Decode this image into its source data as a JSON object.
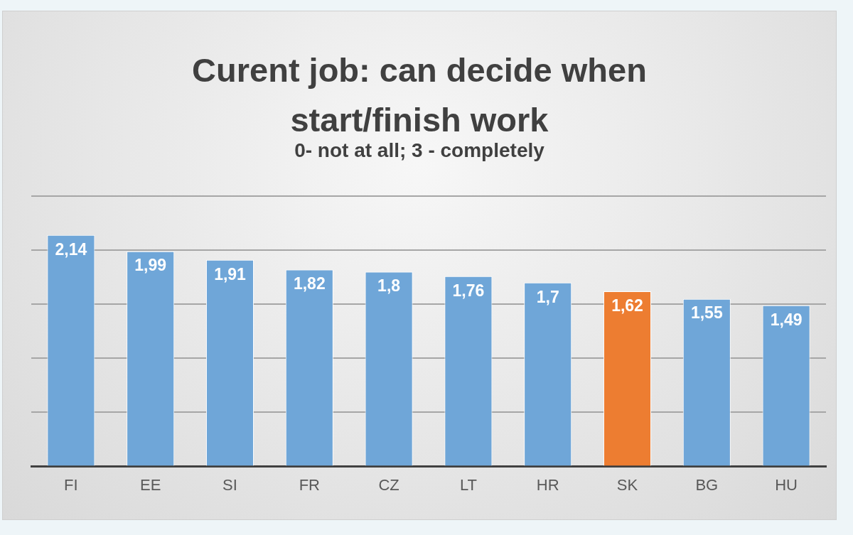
{
  "chart_data": {
    "type": "bar",
    "title": "Curent job: can decide when start/finish work",
    "subtitle": "0- not at all; 3 - completely",
    "categories": [
      "FI",
      "EE",
      "SI",
      "FR",
      "CZ",
      "LT",
      "HR",
      "SK",
      "BG",
      "HU"
    ],
    "values": [
      2.14,
      1.99,
      1.91,
      1.82,
      1.8,
      1.76,
      1.7,
      1.62,
      1.55,
      1.49
    ],
    "value_labels": [
      "2,14",
      "1,99",
      "1,91",
      "1,82",
      "1,8",
      "1,76",
      "1,7",
      "1,62",
      "1,55",
      "1,49"
    ],
    "colors": [
      "#6fa6d8",
      "#6fa6d8",
      "#6fa6d8",
      "#6fa6d8",
      "#6fa6d8",
      "#6fa6d8",
      "#6fa6d8",
      "#ed7d31",
      "#6fa6d8",
      "#6fa6d8"
    ],
    "ylim": [
      0,
      2.5
    ],
    "yticks": [
      {
        "value": 0,
        "label": null
      },
      {
        "value": 0.5,
        "label": null
      },
      {
        "value": 1,
        "label": null
      },
      {
        "value": 1.5,
        "label": null
      },
      {
        "value": 2,
        "label": null
      },
      {
        "value": 2.5,
        "label": null
      }
    ],
    "grid": "y",
    "tick_labels": "x",
    "legend": false
  }
}
